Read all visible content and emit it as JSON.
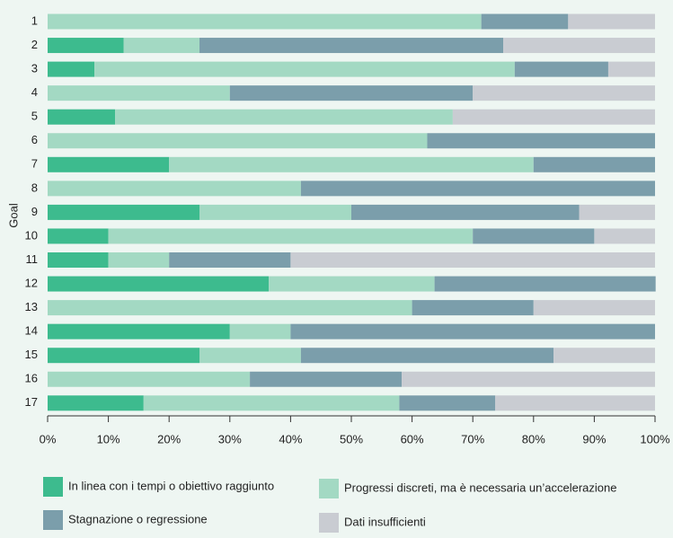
{
  "chart_data": {
    "type": "stacked_barh",
    "y_label": "Goal",
    "categories": [
      "1",
      "2",
      "3",
      "4",
      "5",
      "6",
      "7",
      "8",
      "9",
      "10",
      "11",
      "12",
      "13",
      "14",
      "15",
      "16",
      "17"
    ],
    "series": [
      {
        "name": "In linea con i tempi o obiettivo raggiunto",
        "color": "#3dbb8e",
        "values": [
          0,
          12.5,
          7.7,
          0,
          11.1,
          0,
          20,
          0,
          25,
          10,
          10,
          36.4,
          0,
          30,
          25,
          0,
          15.8
        ]
      },
      {
        "name": "Progressi discreti, ma è necessaria un’accelerazione",
        "color": "#a3d9c3",
        "values": [
          71.4,
          12.5,
          69.2,
          30,
          55.6,
          62.5,
          60,
          41.7,
          25,
          60,
          10,
          27.3,
          60,
          10,
          16.7,
          33.3,
          42.1
        ]
      },
      {
        "name": "Stagnazione o regressione",
        "color": "#7b9eab",
        "values": [
          14.3,
          50,
          15.4,
          40,
          0,
          37.5,
          20,
          58.3,
          37.5,
          20,
          20,
          36.4,
          20,
          60,
          41.6,
          25,
          15.8
        ]
      },
      {
        "name": "Dati insufficienti",
        "color": "#c9ccd2",
        "values": [
          14.3,
          25,
          7.7,
          30,
          33.3,
          0,
          0,
          0,
          12.5,
          10,
          60,
          0,
          20,
          0,
          16.7,
          41.7,
          26.3
        ]
      }
    ],
    "xlim": [
      0,
      100
    ],
    "xticks": [
      {
        "value": 0,
        "label": "0%"
      },
      {
        "value": 10,
        "label": "10%"
      },
      {
        "value": 20,
        "label": "20%"
      },
      {
        "value": 30,
        "label": "30%"
      },
      {
        "value": 40,
        "label": "40%"
      },
      {
        "value": 50,
        "label": "50%"
      },
      {
        "value": 60,
        "label": "60%"
      },
      {
        "value": 70,
        "label": "70%"
      },
      {
        "value": 80,
        "label": "80%"
      },
      {
        "value": 90,
        "label": "90%"
      },
      {
        "value": 100,
        "label": "100%"
      }
    ]
  }
}
